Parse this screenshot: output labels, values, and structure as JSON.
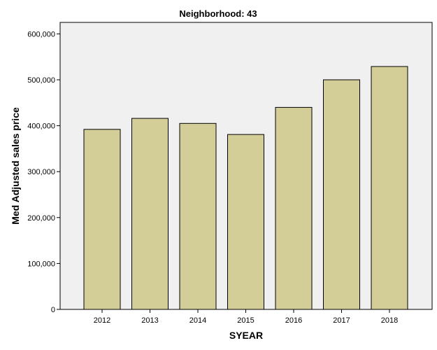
{
  "chart_data": {
    "type": "bar",
    "title": "Neighborhood: 43",
    "xlabel": "SYEAR",
    "ylabel": "Med Adjusted sales price",
    "categories": [
      "2012",
      "2013",
      "2014",
      "2015",
      "2016",
      "2017",
      "2018"
    ],
    "values": [
      392000,
      416000,
      405000,
      381000,
      440000,
      500000,
      529000
    ],
    "ylim": [
      0,
      625000
    ],
    "yticks": [
      0,
      100000,
      200000,
      300000,
      400000,
      500000,
      600000
    ],
    "ytick_labels": [
      "0",
      "100,000",
      "200,000",
      "300,000",
      "400,000",
      "500,000",
      "600,000"
    ],
    "grid": false,
    "legend": "none",
    "colors": {
      "bar_fill": "#D3CE97",
      "bar_stroke": "#000000",
      "plot_background": "#F0F0F0",
      "page_background": "#FFFFFF"
    }
  }
}
